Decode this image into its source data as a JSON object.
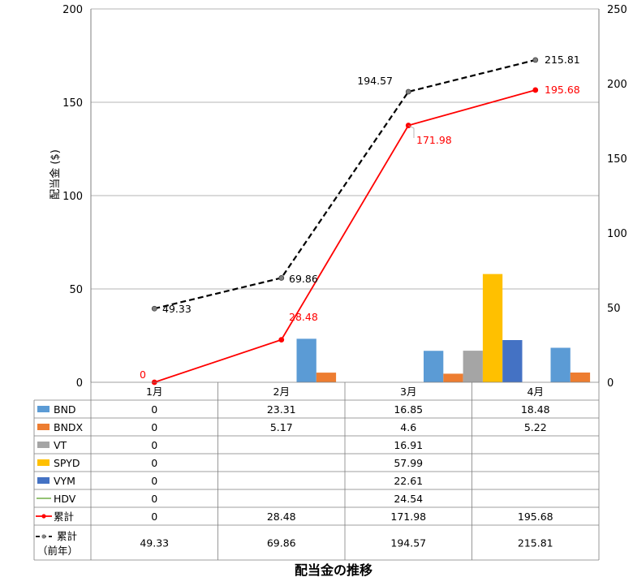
{
  "chart_data": {
    "type": "bar",
    "title": "配当金の推移",
    "ylabel": "配当金 ($)",
    "categories": [
      "1月",
      "2月",
      "3月",
      "4月"
    ],
    "ylim": [
      0,
      200
    ],
    "yticks": [
      0,
      50,
      100,
      150,
      200
    ],
    "y2lim": [
      0,
      250
    ],
    "y2ticks": [
      0,
      50,
      100,
      150,
      200,
      250
    ],
    "grid": true,
    "legend": "data-table",
    "series": [
      {
        "name": "BND",
        "type": "bar",
        "axis": "left",
        "color": "#5b9bd5",
        "values": [
          0,
          23.31,
          16.85,
          18.48
        ],
        "labels": [
          "0",
          "23.31",
          "16.85",
          "18.48"
        ]
      },
      {
        "name": "BNDX",
        "type": "bar",
        "axis": "left",
        "color": "#ed7d31",
        "values": [
          0,
          5.17,
          4.6,
          5.22
        ],
        "labels": [
          "0",
          "5.17",
          "4.6",
          "5.22"
        ]
      },
      {
        "name": "VT",
        "type": "bar",
        "axis": "left",
        "color": "#a5a5a5",
        "values": [
          0,
          null,
          16.91,
          null
        ],
        "labels": [
          "0",
          "",
          "16.91",
          ""
        ]
      },
      {
        "name": "SPYD",
        "type": "bar",
        "axis": "left",
        "color": "#ffc000",
        "values": [
          0,
          null,
          57.99,
          null
        ],
        "labels": [
          "0",
          "",
          "57.99",
          ""
        ]
      },
      {
        "name": "VYM",
        "type": "bar",
        "axis": "left",
        "color": "#4472c4",
        "values": [
          0,
          null,
          22.61,
          null
        ],
        "labels": [
          "0",
          "",
          "22.61",
          ""
        ]
      },
      {
        "name": "HDV",
        "type": "line-hidden",
        "axis": "left",
        "color": "#70ad47",
        "values": [
          0,
          null,
          24.54,
          null
        ],
        "labels": [
          "0",
          "",
          "24.54",
          ""
        ]
      },
      {
        "name": "累計",
        "type": "line",
        "axis": "right",
        "color": "#ff0000",
        "dash": false,
        "values": [
          0,
          28.48,
          171.98,
          195.68
        ],
        "labels": [
          "0",
          "28.48",
          "171.98",
          "195.68"
        ]
      },
      {
        "name": "累計（前年）",
        "name_lines": [
          "累計",
          "（前年）"
        ],
        "type": "line",
        "axis": "right",
        "color": "#000000",
        "dash": true,
        "values": [
          49.33,
          69.86,
          194.57,
          215.81
        ],
        "labels": [
          "49.33",
          "69.86",
          "194.57",
          "215.81"
        ]
      }
    ]
  }
}
